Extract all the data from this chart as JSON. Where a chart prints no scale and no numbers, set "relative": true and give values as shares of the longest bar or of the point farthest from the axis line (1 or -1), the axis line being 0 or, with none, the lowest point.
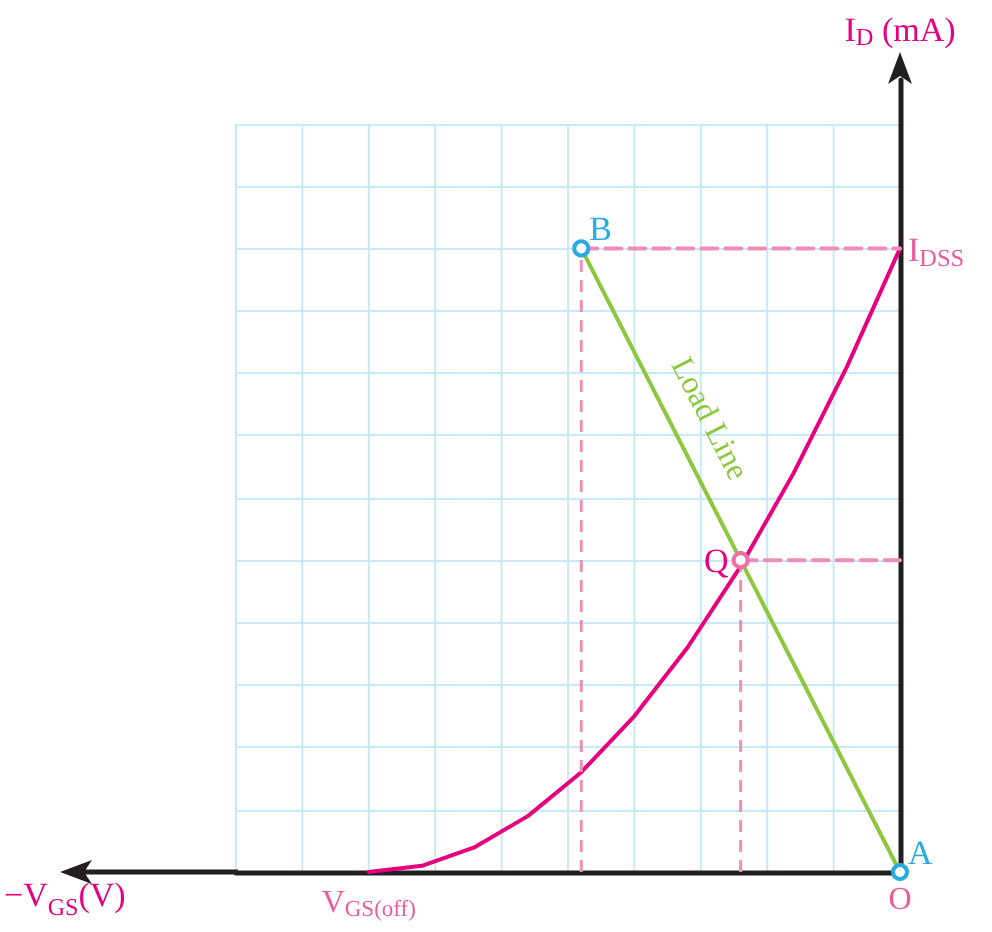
{
  "chart_data": {
    "type": "line",
    "grid": true,
    "marker": "none",
    "xlabel": "−V$_{GS}$(V)",
    "categories": [
      null,
      null,
      null,
      null,
      null,
      "V$_{GS(off)}$",
      null,
      null,
      null,
      null,
      null,
      null,
      null,
      null,
      null,
      null,
      null,
      null,
      null,
      null,
      null,
      null,
      null,
      null,
      null,
      "O"
    ],
    "relative": true,
    "series": [
      {
        "color": "#e6007e",
        "values": [
          null,
          null,
          null,
          null,
          null,
          0,
          null,
          0.01,
          null,
          0.04,
          null,
          0.09,
          null,
          0.16,
          null,
          0.25,
          null,
          0.36,
          null,
          0.49,
          null,
          0.64,
          null,
          0.81,
          null,
          1
        ]
      },
      {
        "name": "Load Line",
        "color": "#8dc63f",
        "values": [
          null,
          null,
          null,
          null,
          null,
          null,
          null,
          null,
          null,
          null,
          null,
          null,
          null,
          1,
          null,
          null,
          null,
          null,
          null,
          null,
          null,
          null,
          null,
          null,
          null,
          0
        ]
      },
      {
        "color": "#ee8fb8",
        "line_style": "dashed",
        "values": [
          null,
          null,
          null,
          null,
          null,
          null,
          null,
          null,
          null,
          null,
          null,
          null,
          null,
          1,
          null,
          null,
          null,
          null,
          null,
          null,
          null,
          null,
          null,
          null,
          null,
          1
        ]
      },
      {
        "color": "#ee8fb8",
        "line_style": "dashed",
        "values": [
          null,
          null,
          null,
          null,
          null,
          null,
          null,
          null,
          null,
          null,
          null,
          null,
          null,
          null,
          null,
          null,
          null,
          null,
          null,
          0.5,
          null,
          null,
          null,
          null,
          null,
          0.5
        ]
      },
      {
        "type": "lollipop",
        "marker": "circle",
        "color": "#ee8fb8",
        "line_style": "dashed",
        "values": [
          null,
          null,
          null,
          null,
          null,
          null,
          null,
          null,
          null,
          null,
          null,
          null,
          null,
          1,
          null,
          null,
          null,
          null,
          null,
          0.5,
          null,
          null,
          null,
          null,
          null,
          0
        ],
        "colors": [
          null,
          null,
          null,
          null,
          null,
          null,
          null,
          null,
          null,
          null,
          null,
          null,
          null,
          "#29abe2",
          null,
          null,
          null,
          null,
          null,
          "#ec6fa5",
          null,
          null,
          null,
          null,
          null,
          "#29abe2"
        ]
      }
    ],
    "annotations": [
      "B",
      {
        "text": "A",
        "x": "O",
        "y": 0
      },
      "Q",
      {
        "text": "I$_{DSS}$",
        "x": "O",
        "y": 1
      },
      "I$_{D}$ (mA)"
    ]
  }
}
